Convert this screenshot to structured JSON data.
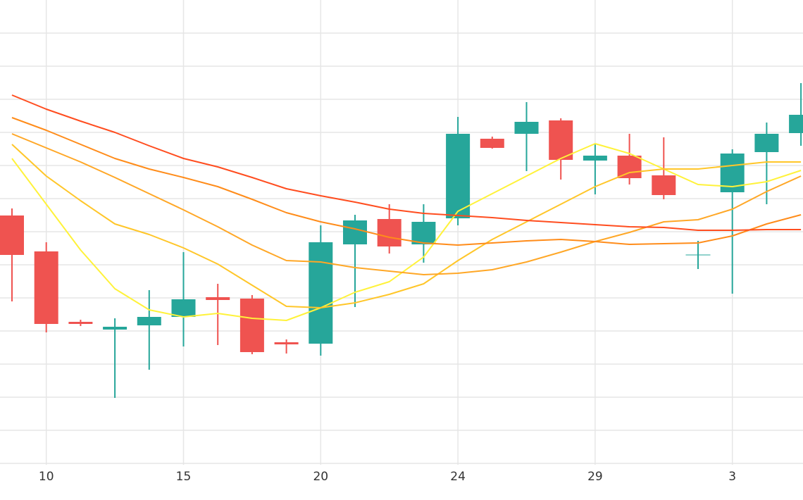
{
  "chart_data": {
    "type": "candlestick",
    "categories": [
      null,
      "10",
      null,
      null,
      null,
      "15",
      null,
      null,
      null,
      "20",
      null,
      null,
      null,
      "24",
      null,
      null,
      null,
      "29",
      null,
      null,
      null,
      "3",
      null,
      null
    ],
    "open": [
      354,
      303,
      203,
      192,
      198,
      210,
      238,
      236,
      174,
      172,
      313,
      349,
      313,
      350,
      463,
      470,
      489,
      432,
      439,
      411,
      298,
      387,
      444,
      471
    ],
    "high": [
      364,
      316,
      206,
      208,
      248,
      302,
      257,
      241,
      178,
      340,
      355,
      370,
      370,
      494,
      466,
      515,
      492,
      455,
      470,
      465,
      318,
      448,
      486,
      542
    ],
    "low": [
      232,
      188,
      197,
      95,
      135,
      168,
      170,
      157,
      158,
      155,
      224,
      300,
      287,
      340,
      449,
      417,
      405,
      384,
      398,
      377,
      278,
      243,
      370,
      453
    ],
    "close": [
      298,
      200,
      200,
      196,
      210,
      235,
      234,
      160,
      171,
      316,
      347,
      310,
      345,
      470,
      450,
      487,
      433,
      439,
      407,
      383,
      298,
      442,
      470,
      497
    ],
    "up_color": "#26a69a",
    "down_color": "#ef5350",
    "lines": [
      {
        "color": "#fff23a",
        "values": [
          435,
          370,
          305,
          250,
          220,
          210,
          215,
          208,
          205,
          223,
          245,
          260,
          295,
          360,
          385,
          410,
          435,
          456,
          442,
          420,
          398,
          395,
          402,
          418
        ]
      },
      {
        "color": "#ffc629",
        "values": [
          455,
          410,
          375,
          342,
          327,
          308,
          285,
          255,
          225,
          223,
          230,
          242,
          257,
          290,
          320,
          345,
          370,
          395,
          415,
          420,
          420,
          425,
          430,
          430
        ]
      },
      {
        "color": "#ffa726",
        "values": [
          470,
          450,
          430,
          408,
          385,
          362,
          338,
          312,
          290,
          288,
          280,
          275,
          270,
          272,
          277,
          288,
          302,
          317,
          330,
          345,
          348,
          363,
          388,
          410
        ]
      },
      {
        "color": "#ff8c1a",
        "values": [
          493,
          475,
          455,
          435,
          420,
          408,
          395,
          377,
          358,
          345,
          335,
          323,
          315,
          312,
          315,
          318,
          320,
          317,
          313,
          314,
          315,
          325,
          342,
          355
        ]
      },
      {
        "color": "#ff4d1f",
        "values": [
          525,
          505,
          488,
          472,
          453,
          435,
          423,
          408,
          392,
          382,
          373,
          363,
          357,
          354,
          351,
          347,
          344,
          341,
          338,
          337,
          333,
          333,
          334,
          334
        ]
      }
    ],
    "ylim": [
      0,
      660
    ],
    "yticks": [
      2,
      49,
      96,
      143,
      190,
      237,
      284,
      331,
      378,
      425,
      472,
      519,
      566,
      613
    ],
    "grid": true
  }
}
